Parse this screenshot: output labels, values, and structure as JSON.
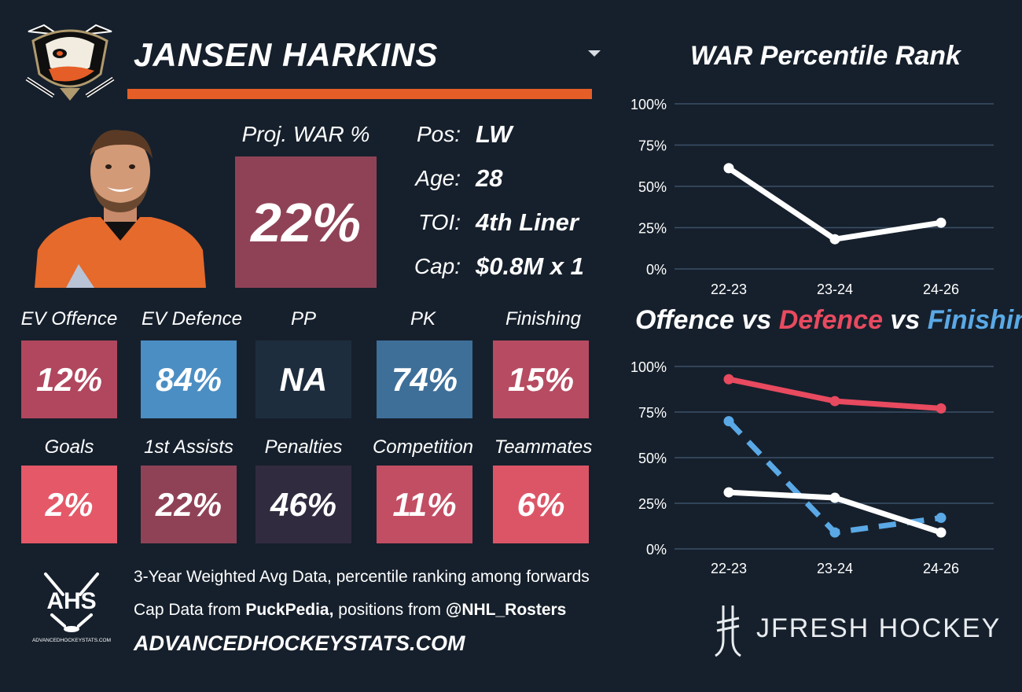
{
  "header": {
    "player_name": "JANSEN HARKINS",
    "underline_color": "#e55e27"
  },
  "player": {
    "proj_war_label": "Proj. WAR %",
    "proj_war_value": "22%",
    "proj_war_color": "#8f4256",
    "info": [
      {
        "label": "Pos:",
        "value": "LW"
      },
      {
        "label": "Age:",
        "value": "28"
      },
      {
        "label": "TOI:",
        "value": "4th Liner"
      },
      {
        "label": "Cap:",
        "value": "$0.8M x 1"
      }
    ]
  },
  "tiles_row1": [
    {
      "label": "EV Offence",
      "value": "12%",
      "color": "#b0475e"
    },
    {
      "label": "EV Defence",
      "value": "84%",
      "color": "#4b8ec3"
    },
    {
      "label": "PP",
      "value": "NA",
      "color": "#1e2d3d"
    },
    {
      "label": "PK",
      "value": "74%",
      "color": "#3e6f99"
    },
    {
      "label": "Finishing",
      "value": "15%",
      "color": "#b64b61"
    }
  ],
  "tiles_row2": [
    {
      "label": "Goals",
      "value": "2%",
      "color": "#e45868"
    },
    {
      "label": "1st Assists",
      "value": "22%",
      "color": "#8f4256"
    },
    {
      "label": "Penalties",
      "value": "46%",
      "color": "#312b40"
    },
    {
      "label": "Competition",
      "value": "11%",
      "color": "#c24e64"
    },
    {
      "label": "Teammates",
      "value": "6%",
      "color": "#dc5567"
    }
  ],
  "footer": {
    "line1": "3-Year Weighted Avg Data, percentile ranking among forwards",
    "line2_prefix": "Cap Data from ",
    "line2_source": "PuckPedia,",
    "line2_middle": " positions from ",
    "line2_handle": "@NHL_Rosters",
    "url": "ADVANCEDHOCKEYSTATS.COM",
    "ahs_logo_text": "AHS",
    "ahs_logo_small": "ADVANCEDHOCKEYSTATS.COM",
    "brand": "JFRESH HOCKEY"
  },
  "chart_data": [
    {
      "type": "line",
      "title": "WAR Percentile Rank",
      "categories": [
        "22-23",
        "23-24",
        "24-26"
      ],
      "yticks": [
        "0%",
        "25%",
        "50%",
        "75%",
        "100%"
      ],
      "ylim": [
        0,
        100
      ],
      "grid": true,
      "series": [
        {
          "values": [
            61,
            18,
            28
          ],
          "color": "#ffffff",
          "dash": false
        }
      ]
    },
    {
      "type": "line",
      "title_parts": [
        {
          "text": "Offence",
          "color": "#ffffff"
        },
        {
          "text": " vs ",
          "color": "#ffffff"
        },
        {
          "text": "Defence",
          "color": "#e84a5f"
        },
        {
          "text": " vs ",
          "color": "#ffffff"
        },
        {
          "text": "Finishing",
          "color": "#5aa9e6"
        }
      ],
      "categories": [
        "22-23",
        "23-24",
        "24-26"
      ],
      "yticks": [
        "0%",
        "25%",
        "50%",
        "75%",
        "100%"
      ],
      "ylim": [
        0,
        100
      ],
      "grid": true,
      "series": [
        {
          "name": "Defence",
          "values": [
            93,
            81,
            77
          ],
          "color": "#e84a5f",
          "dash": false
        },
        {
          "name": "Finishing",
          "values": [
            70,
            9,
            17
          ],
          "color": "#5aa9e6",
          "dash": true
        },
        {
          "name": "Offence",
          "values": [
            31,
            28,
            9
          ],
          "color": "#ffffff",
          "dash": false
        }
      ]
    }
  ]
}
